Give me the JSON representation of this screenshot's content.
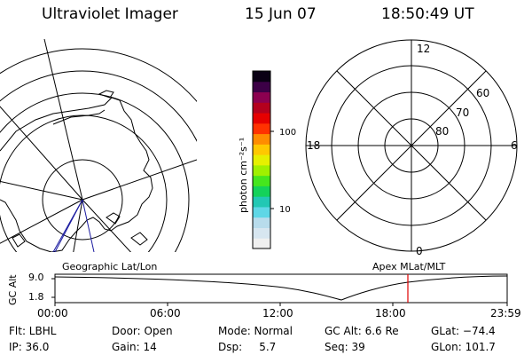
{
  "header": {
    "instrument": "Ultraviolet Imager",
    "date": "15 Jun 07",
    "time": "18:50:49 UT"
  },
  "colorbar": {
    "unit_label": "photon cm⁻²s⁻¹",
    "ticks": [
      "100",
      "10"
    ],
    "colors": [
      "#f0f0f0",
      "#d7e6f0",
      "#b8dcec",
      "#5fd7e6",
      "#22c8b4",
      "#14d25a",
      "#46e61e",
      "#a0f000",
      "#e6f000",
      "#ffc800",
      "#ff8c00",
      "#ff3200",
      "#e60000",
      "#b4001e",
      "#8c0050",
      "#3c0046",
      "#0a0014"
    ]
  },
  "geo_map": {
    "label": "Geographic Lat/Lon"
  },
  "polar_plot": {
    "label": "Apex MLat/MLT",
    "mlt_labels": [
      "12",
      "18",
      "6",
      "0"
    ],
    "lat_labels": [
      "60",
      "70",
      "80"
    ]
  },
  "orbit": {
    "axis_label": "GC Alt",
    "y_ticks": [
      "9.0",
      "1.8"
    ],
    "x_ticks": [
      "00:00",
      "06:00",
      "12:00",
      "18:00",
      "23:59"
    ]
  },
  "footer": {
    "filter": "Flt: LBHL",
    "ip": "IP: 36.0",
    "door": "Door: Open",
    "gain": "Gain: 14",
    "mode": "Mode: Normal",
    "dsp": "Dsp:     5.7",
    "gc_alt": "GC Alt: 6.6 Re",
    "seq": "Seq: 39",
    "glat": "GLat: −74.4",
    "glon": "GLon: 101.7"
  }
}
